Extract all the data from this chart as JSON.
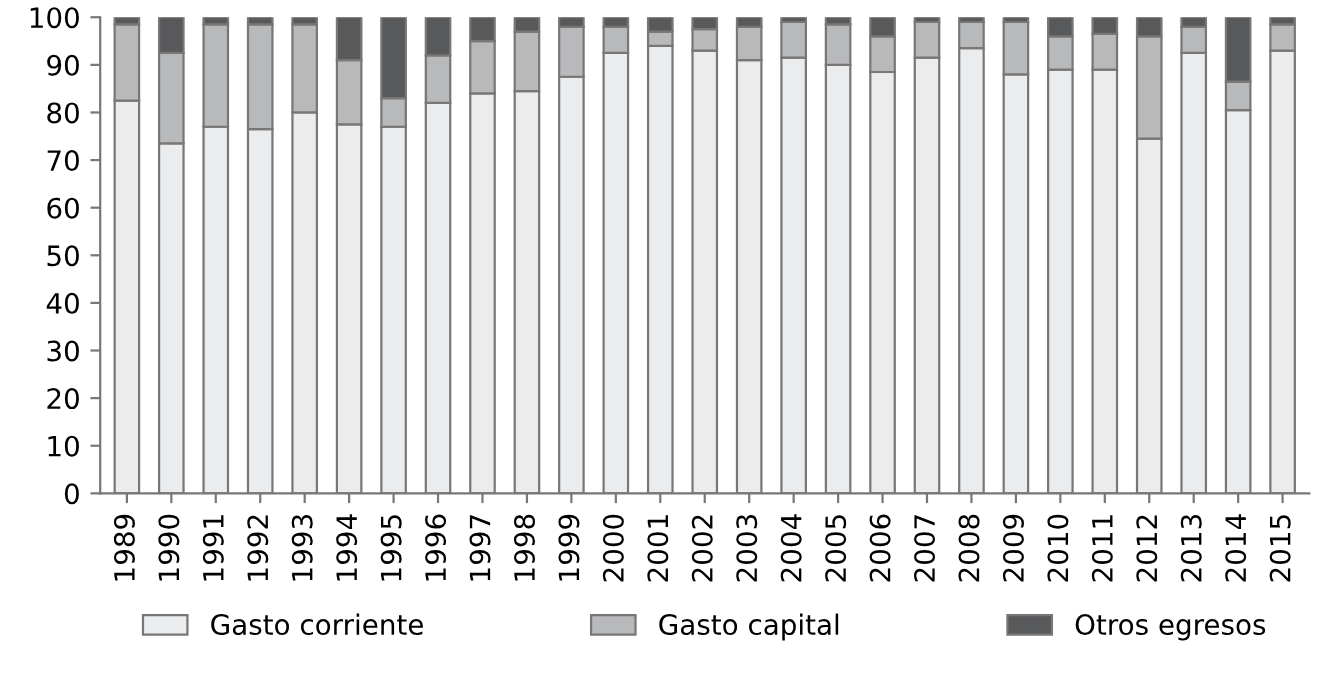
{
  "chart_data": {
    "type": "bar",
    "stacked": true,
    "categories": [
      "1989",
      "1990",
      "1991",
      "1992",
      "1993",
      "1994",
      "1995",
      "1996",
      "1997",
      "1998",
      "1999",
      "2000",
      "2001",
      "2002",
      "2003",
      "2004",
      "2005",
      "2006",
      "2007",
      "2008",
      "2009",
      "2010",
      "2011",
      "2012",
      "2013",
      "2014",
      "2015"
    ],
    "series": [
      {
        "name": "Gasto corriente",
        "color": "#ebecee",
        "values": [
          82.5,
          73.5,
          77,
          76.5,
          80,
          77.5,
          77,
          82,
          84,
          84.5,
          87.5,
          92.5,
          94,
          93,
          91,
          91.5,
          90,
          88.5,
          91.5,
          93.5,
          88,
          89,
          89,
          74.5,
          92.5,
          80.5,
          93
        ]
      },
      {
        "name": "Gasto capital",
        "color": "#b8b9bb",
        "values": [
          16,
          19,
          21.5,
          22,
          18.5,
          13.5,
          6,
          10,
          11,
          12.5,
          10.5,
          5.5,
          3,
          4.5,
          7,
          7.5,
          8.5,
          7.5,
          7.5,
          5.5,
          11,
          7,
          7.5,
          21.5,
          5.5,
          6,
          5.5
        ]
      },
      {
        "name": "Otros egresos",
        "color": "#58595b",
        "values": [
          1.5,
          7.5,
          1.5,
          1.5,
          1.5,
          9,
          17,
          8,
          5,
          3,
          2,
          2,
          3,
          2.5,
          2,
          1,
          1.5,
          4,
          1,
          1,
          1,
          4,
          3.5,
          4,
          2,
          13.5,
          1.5
        ]
      }
    ],
    "ylim": [
      0,
      100
    ],
    "yticks": [
      0,
      10,
      20,
      30,
      40,
      50,
      60,
      70,
      80,
      90,
      100
    ],
    "grid": false,
    "legend": "bottom"
  }
}
